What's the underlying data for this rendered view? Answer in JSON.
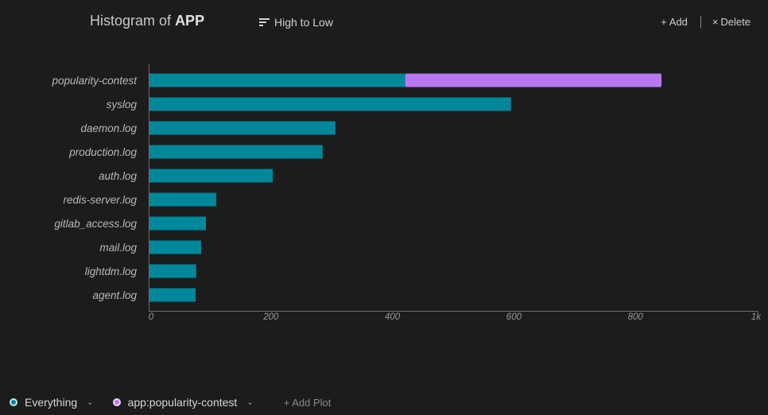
{
  "header": {
    "title_prefix": "Histogram of",
    "title_field": "APP",
    "sort_label": "High to Low",
    "add_label": "Add",
    "delete_label": "Delete"
  },
  "colors": {
    "everything": "#00879a",
    "popularity": "#b878f2"
  },
  "chart_data": {
    "type": "bar",
    "orientation": "horizontal",
    "stacked": true,
    "categories": [
      "popularity-contest",
      "syslog",
      "daemon.log",
      "production.log",
      "auth.log",
      "redis-server.log",
      "gitlab_access.log",
      "mail.log",
      "lightdm.log",
      "agent.log"
    ],
    "series": [
      {
        "name": "Everything",
        "values": [
          421,
          595,
          306,
          285,
          203,
          110,
          93,
          85,
          77,
          76
        ]
      },
      {
        "name": "app:popularity-contest",
        "values": [
          422,
          0,
          0,
          0,
          0,
          0,
          0,
          0,
          0,
          0
        ]
      }
    ],
    "xlim": [
      0,
      1000
    ],
    "xticks": [
      "0",
      "200",
      "400",
      "600",
      "800",
      "1k"
    ]
  },
  "footer": {
    "plots": [
      {
        "label": "Everything"
      },
      {
        "label": "app:popularity-contest"
      }
    ],
    "add_plot_label": "+ Add Plot"
  }
}
